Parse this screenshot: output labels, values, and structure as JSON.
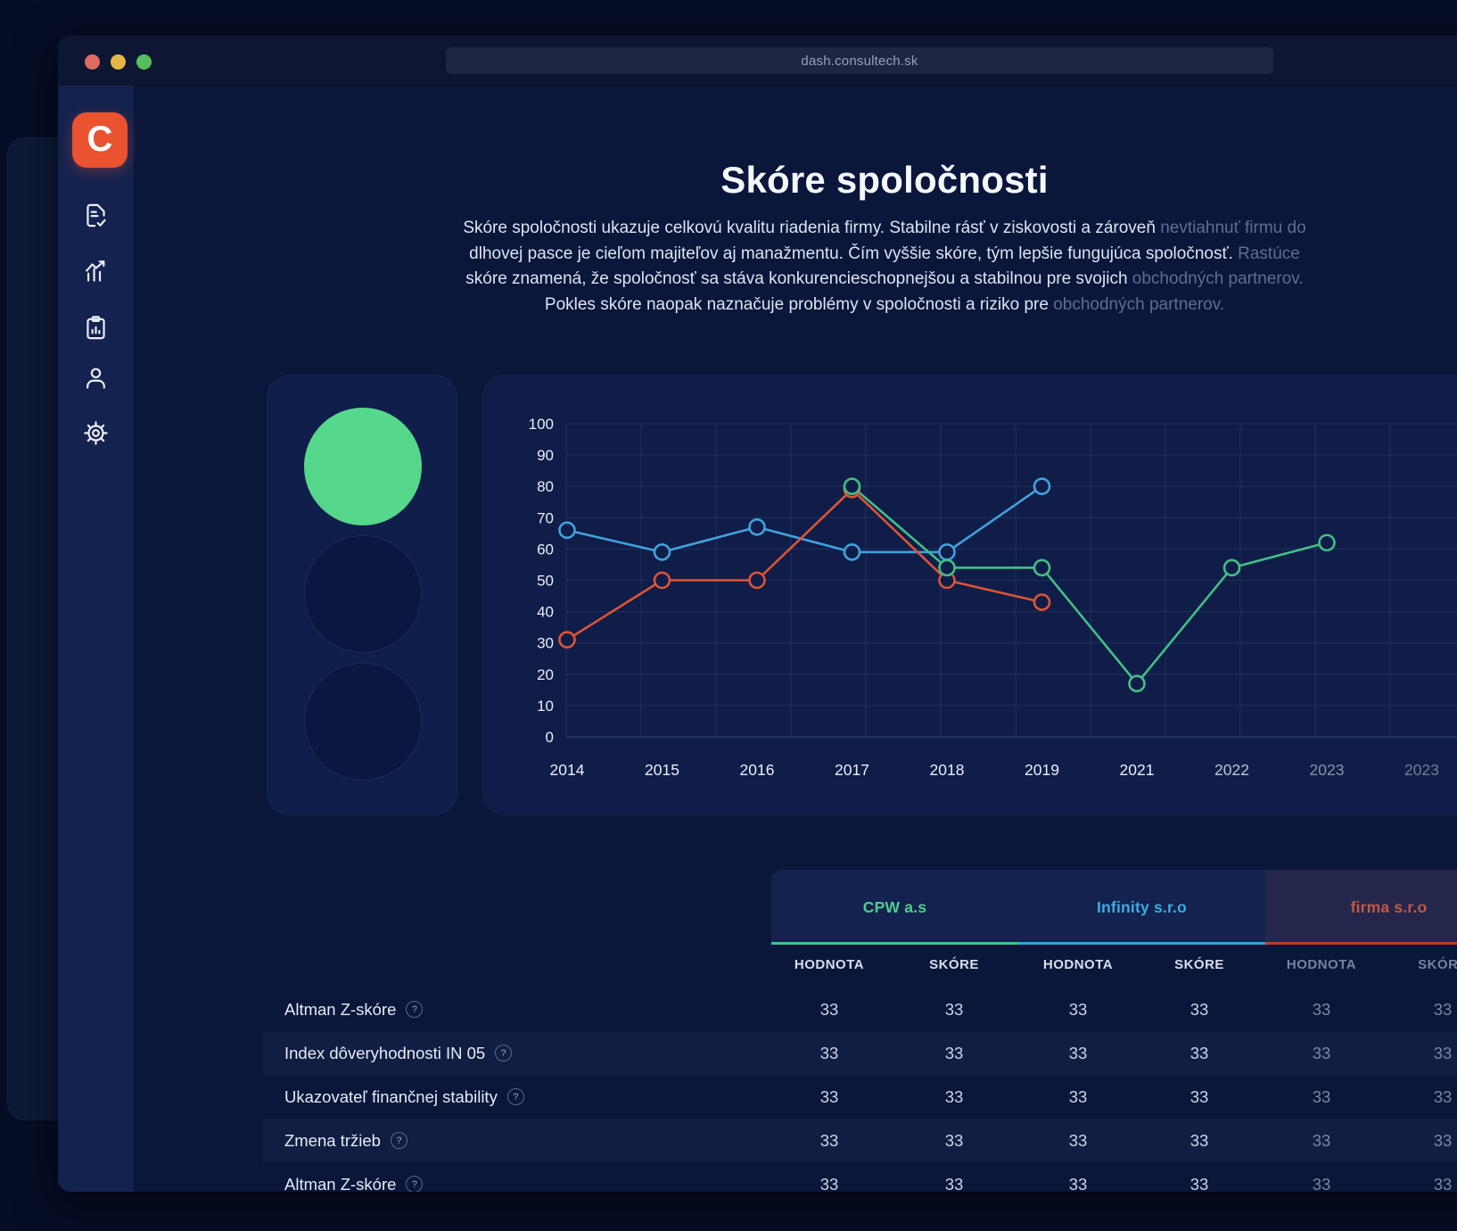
{
  "browser": {
    "url": "dash.consultech.sk"
  },
  "sidebar": {
    "logo_text": "C",
    "items": [
      "document-check",
      "analytics-trend",
      "report-clipboard",
      "profile",
      "settings"
    ]
  },
  "header": {
    "title": "Skóre spoločnosti",
    "paragraph_segments": [
      {
        "text": "Skóre spoločnosti ukazuje celkovú kvalitu riadenia firmy. Stabilne rásť v ziskovosti a zároveň ",
        "style": "normal",
        "break_after": false
      },
      {
        "text": "nevtiahnuť firmu do",
        "style": "dim",
        "break_after": true
      },
      {
        "text": "dlhovej pasce je cieľom majiteľov aj manažmentu. Čím vyššie skóre, tým lepšie fungujúca spoločnosť. ",
        "style": "normal",
        "break_after": false
      },
      {
        "text": "Rastúce",
        "style": "dim",
        "break_after": true
      },
      {
        "text": "skóre znamená, že spoločnosť sa stáva konkurencieschopnejšou a stabilnou pre svojich ",
        "style": "normal",
        "break_after": false
      },
      {
        "text": "obchodných partnerov.",
        "style": "dim",
        "break_after": true
      },
      {
        "text": "Pokles skóre naopak naznačuje problémy v spoločnosti a riziko pre ",
        "style": "normal",
        "break_after": false
      },
      {
        "text": "obchodných partnerov.",
        "style": "dim",
        "break_after": false
      }
    ]
  },
  "traffic_light": {
    "active_color": "#55D88B",
    "lights": [
      {
        "position": "top",
        "state": "on"
      },
      {
        "position": "middle",
        "state": "off"
      },
      {
        "position": "bottom",
        "state": "off"
      }
    ]
  },
  "chart_data": {
    "type": "line",
    "title": "",
    "xlabel": "",
    "ylabel": "",
    "ylim": [
      0,
      100
    ],
    "y_ticks": [
      0,
      10,
      20,
      30,
      40,
      50,
      60,
      70,
      80,
      90,
      100
    ],
    "grid": true,
    "legend_position": "none",
    "categories": [
      "2014",
      "2015",
      "2016",
      "2017",
      "2018",
      "2019",
      "2021",
      "2022",
      "2023",
      "2023"
    ],
    "category_label_opacity": [
      1,
      1,
      1,
      1,
      1,
      1,
      1,
      0.8,
      0.55,
      0.45
    ],
    "series": [
      {
        "name": "Infinity s.r.o",
        "color": "#41A2DC",
        "start_index": 0,
        "values": [
          66,
          59,
          67,
          59,
          59,
          80
        ]
      },
      {
        "name": "firma s.r.o",
        "color": "#DD5434",
        "start_index": 0,
        "values": [
          31,
          50,
          50,
          79,
          50,
          43
        ]
      },
      {
        "name": "CPW a.s",
        "color": "#43BE88",
        "start_index": 3,
        "values": [
          80,
          54,
          54,
          17,
          54,
          62
        ]
      }
    ]
  },
  "table": {
    "company_tabs": [
      {
        "label": "CPW a.s",
        "color": "#4ECE8E",
        "underline": "#44C287",
        "tinted": false
      },
      {
        "label": "Infinity s.r.o",
        "color": "#3FA9E0",
        "underline": "#36A0D8",
        "tinted": false
      },
      {
        "label": "firma s.r.o",
        "color": "#C05848",
        "underline": "#B4402E",
        "tinted": true
      }
    ],
    "subheaders": [
      "HODNOTA",
      "SKÓRE",
      "HODNOTA",
      "SKÓRE",
      "HODNOTA",
      "SKÓRE"
    ],
    "help_icon": "?",
    "rows": [
      {
        "label": "Altman Z-skóre",
        "values": [
          "33",
          "33",
          "33",
          "33",
          "33",
          "33"
        ]
      },
      {
        "label": "Index dôveryhodnosti IN 05",
        "values": [
          "33",
          "33",
          "33",
          "33",
          "33",
          "33"
        ]
      },
      {
        "label": "Ukazovateľ finančnej stability",
        "values": [
          "33",
          "33",
          "33",
          "33",
          "33",
          "33"
        ]
      },
      {
        "label": "Zmena tržieb",
        "values": [
          "33",
          "33",
          "33",
          "33",
          "33",
          "33"
        ]
      },
      {
        "label": "Altman Z-skóre",
        "values": [
          "33",
          "33",
          "33",
          "33",
          "33",
          "33"
        ]
      }
    ]
  }
}
